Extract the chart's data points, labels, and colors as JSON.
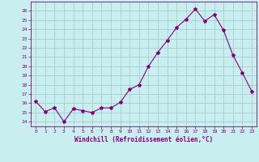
{
  "x": [
    0,
    1,
    2,
    3,
    4,
    5,
    6,
    7,
    8,
    9,
    10,
    11,
    12,
    13,
    14,
    15,
    16,
    17,
    18,
    19,
    20,
    21,
    22,
    23
  ],
  "y": [
    16.2,
    15.1,
    15.5,
    14.0,
    15.4,
    15.2,
    15.0,
    15.5,
    15.5,
    16.1,
    17.5,
    18.0,
    20.0,
    21.5,
    22.8,
    24.2,
    25.1,
    26.2,
    24.9,
    25.6,
    23.9,
    21.2,
    19.3,
    17.3
  ],
  "line_color": "#800080",
  "marker": "*",
  "marker_size": 3,
  "bg_color": "#c8eef0",
  "grid_color": "#aacccc",
  "xlabel": "Windchill (Refroidissement éolien,°C)",
  "xlabel_color": "#800080",
  "tick_color": "#800080",
  "spine_color": "#800080",
  "ylim": [
    13.5,
    27
  ],
  "xlim": [
    -0.5,
    23.5
  ],
  "yticks": [
    14,
    15,
    16,
    17,
    18,
    19,
    20,
    21,
    22,
    23,
    24,
    25,
    26
  ],
  "xticks": [
    0,
    1,
    2,
    3,
    4,
    5,
    6,
    7,
    8,
    9,
    10,
    11,
    12,
    13,
    14,
    15,
    16,
    17,
    18,
    19,
    20,
    21,
    22,
    23
  ]
}
